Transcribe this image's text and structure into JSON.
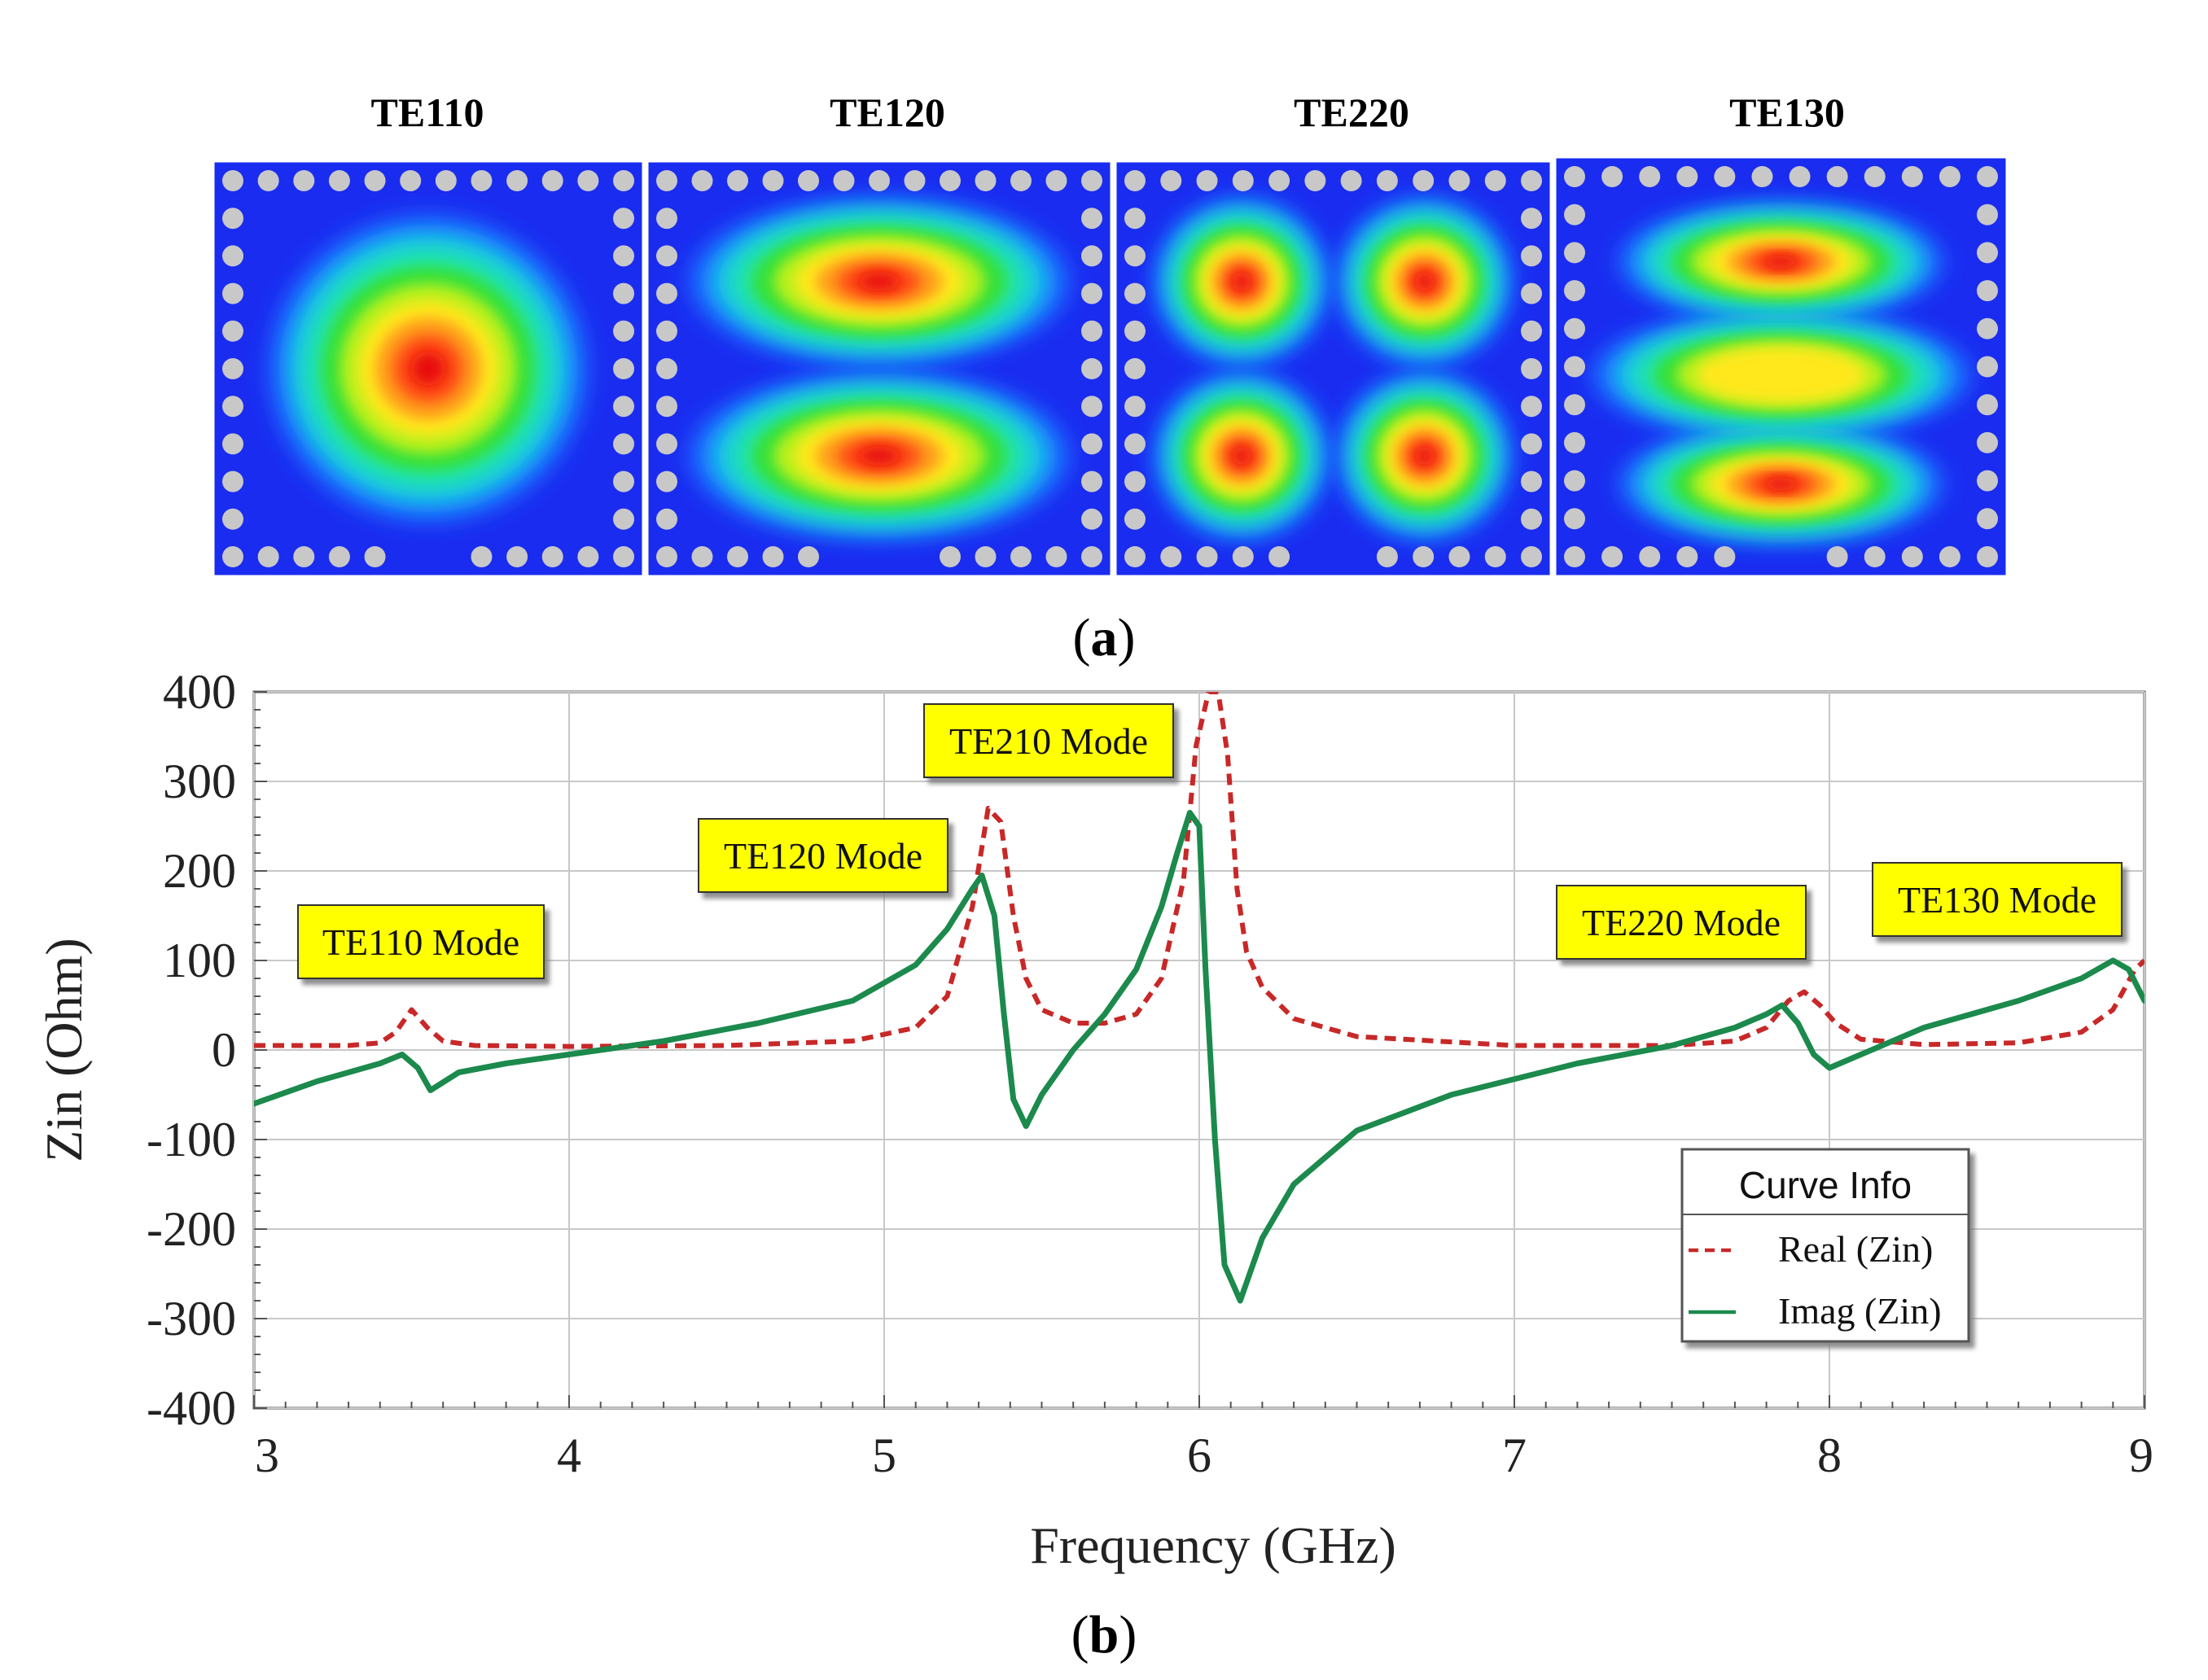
{
  "panel_a": {
    "label_open": "(",
    "label_letter": "a",
    "label_close": ")",
    "modes": [
      {
        "title": "TE110",
        "pattern": "single-lobe"
      },
      {
        "title": "TE120",
        "pattern": "two-lobes-vertical"
      },
      {
        "title": "TE220",
        "pattern": "four-lobes"
      },
      {
        "title": "TE130",
        "pattern": "three-lobes-vertical"
      }
    ],
    "colors": {
      "background": "#1a2cf0",
      "via": "#c8c8c8",
      "scale": [
        "#1a2cf0",
        "#1f6bff",
        "#19c8f0",
        "#23e6a0",
        "#35e03a",
        "#b6f01e",
        "#ffe81a",
        "#ff9f1a",
        "#ff4d12",
        "#e80a0a"
      ]
    }
  },
  "panel_b": {
    "label_open": "(",
    "label_letter": "b",
    "label_close": ")",
    "annotations": [
      {
        "text": "TE110 Mode",
        "anchor_x": 3.5,
        "anchor_y": 35
      },
      {
        "text": "TE120 Mode",
        "anchor_x": 5.3,
        "anchor_y": 195
      },
      {
        "text": "TE210 Mode",
        "anchor_x": 5.98,
        "anchor_y": 265
      },
      {
        "text": "TE220 Mode",
        "anchor_x": 7.9,
        "anchor_y": 55
      },
      {
        "text": "TE130 Mode",
        "anchor_x": 8.9,
        "anchor_y": 95
      }
    ],
    "legend": {
      "title": "Curve Info",
      "items": [
        "Real (Zin)",
        "Imag (Zin)"
      ]
    }
  },
  "chart_data": {
    "type": "line",
    "title": "",
    "xlabel": "Frequency (GHz)",
    "ylabel": "Zin (Ohm)",
    "xlim": [
      3,
      9
    ],
    "ylim": [
      -400,
      400
    ],
    "x_ticks": [
      "3",
      "4",
      "5",
      "6",
      "7",
      "8",
      "9"
    ],
    "y_ticks": [
      "400",
      "300",
      "200",
      "100",
      "0",
      "-100",
      "-200",
      "-300",
      "-400"
    ],
    "grid": true,
    "legend_position": "bottom-right",
    "series": [
      {
        "name": "Real (Zin)",
        "color": "#c82828",
        "style": "dashed",
        "x": [
          3.0,
          3.3,
          3.4,
          3.45,
          3.5,
          3.55,
          3.6,
          3.7,
          4.0,
          4.5,
          4.9,
          5.1,
          5.2,
          5.28,
          5.33,
          5.37,
          5.41,
          5.45,
          5.5,
          5.6,
          5.7,
          5.8,
          5.88,
          5.95,
          5.99,
          6.03,
          6.06,
          6.09,
          6.12,
          6.15,
          6.2,
          6.3,
          6.5,
          7.0,
          7.5,
          7.7,
          7.8,
          7.87,
          7.92,
          7.97,
          8.02,
          8.1,
          8.3,
          8.6,
          8.8,
          8.9,
          8.97,
          9.0
        ],
        "y": [
          5,
          5,
          8,
          20,
          45,
          25,
          10,
          5,
          4,
          5,
          10,
          25,
          60,
          160,
          270,
          255,
          150,
          80,
          45,
          30,
          30,
          40,
          80,
          190,
          340,
          400,
          400,
          330,
          180,
          110,
          70,
          35,
          15,
          5,
          5,
          10,
          25,
          55,
          65,
          50,
          30,
          12,
          6,
          8,
          20,
          45,
          90,
          100
        ]
      },
      {
        "name": "Imag (Zin)",
        "color": "#1b8a4c",
        "style": "solid",
        "x": [
          3.0,
          3.2,
          3.4,
          3.47,
          3.52,
          3.56,
          3.65,
          3.8,
          4.0,
          4.3,
          4.6,
          4.9,
          5.1,
          5.2,
          5.28,
          5.31,
          5.35,
          5.38,
          5.41,
          5.45,
          5.5,
          5.6,
          5.7,
          5.8,
          5.88,
          5.93,
          5.97,
          6.0,
          6.02,
          6.05,
          6.08,
          6.13,
          6.2,
          6.3,
          6.5,
          6.8,
          7.2,
          7.5,
          7.7,
          7.8,
          7.85,
          7.9,
          7.95,
          8.0,
          8.1,
          8.3,
          8.6,
          8.8,
          8.9,
          8.95,
          9.0
        ],
        "y": [
          -60,
          -35,
          -15,
          -5,
          -20,
          -45,
          -25,
          -15,
          -5,
          10,
          30,
          55,
          95,
          135,
          180,
          195,
          150,
          40,
          -55,
          -85,
          -50,
          0,
          40,
          90,
          160,
          220,
          265,
          250,
          90,
          -100,
          -240,
          -280,
          -210,
          -150,
          -90,
          -50,
          -15,
          5,
          25,
          40,
          50,
          30,
          -5,
          -20,
          -5,
          25,
          55,
          80,
          100,
          90,
          55
        ]
      }
    ]
  }
}
